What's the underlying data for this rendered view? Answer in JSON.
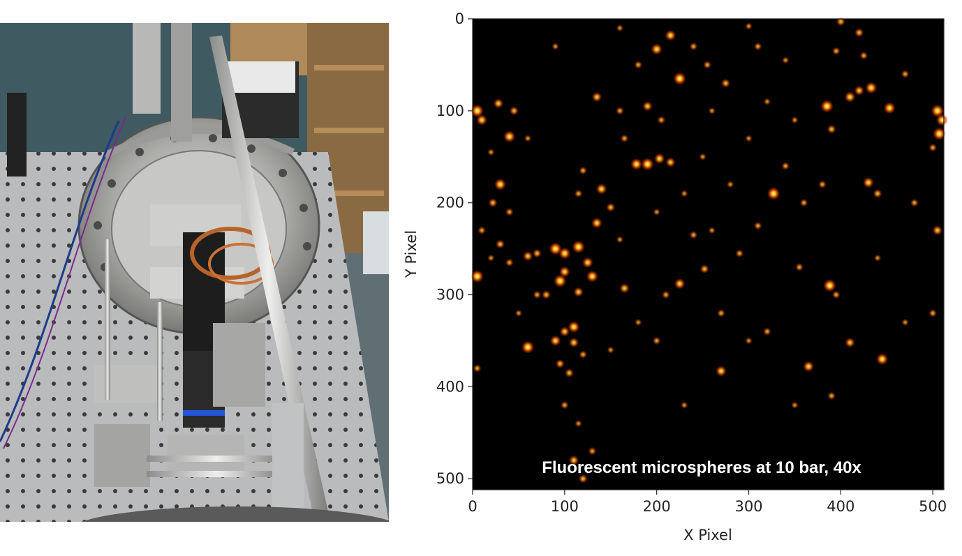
{
  "photo": {
    "icon": "optical-pressure-apparatus-photo"
  },
  "chart_data": {
    "type": "heatmap",
    "colormap": "afmhot",
    "xlabel": "X Pixel",
    "ylabel": "Y Pixel",
    "xlim": [
      0,
      511
    ],
    "ylim": [
      511,
      0
    ],
    "x_ticks": [
      "0",
      "100",
      "200",
      "300",
      "400",
      "500"
    ],
    "y_ticks": [
      "0",
      "100",
      "200",
      "300",
      "400",
      "500"
    ],
    "x_tick_values": [
      0,
      100,
      200,
      300,
      400,
      500
    ],
    "y_tick_values": [
      0,
      100,
      200,
      300,
      400,
      500
    ],
    "annotation": "Fluorescent microspheres at 10 bar, 40x",
    "grid": false,
    "colors": {
      "background": "#000000",
      "mid": "#c83200",
      "bright": "#ffb000",
      "peak": "#ffffe0"
    },
    "spots": [
      [
        5,
        100,
        1.0
      ],
      [
        10,
        110,
        0.8
      ],
      [
        28,
        92,
        0.7
      ],
      [
        40,
        128,
        0.9
      ],
      [
        45,
        100,
        0.6
      ],
      [
        200,
        33,
        0.85
      ],
      [
        215,
        18,
        0.8
      ],
      [
        225,
        65,
        1.0
      ],
      [
        240,
        30,
        0.5
      ],
      [
        255,
        50,
        0.5
      ],
      [
        135,
        85,
        0.7
      ],
      [
        160,
        100,
        0.5
      ],
      [
        190,
        95,
        0.7
      ],
      [
        165,
        130,
        0.5
      ],
      [
        205,
        110,
        0.5
      ],
      [
        190,
        158,
        1.0
      ],
      [
        178,
        158,
        0.9
      ],
      [
        203,
        152,
        0.8
      ],
      [
        215,
        156,
        0.7
      ],
      [
        140,
        185,
        0.8
      ],
      [
        135,
        222,
        0.8
      ],
      [
        120,
        165,
        0.5
      ],
      [
        115,
        190,
        0.5
      ],
      [
        150,
        205,
        0.6
      ],
      [
        30,
        180,
        0.9
      ],
      [
        22,
        200,
        0.6
      ],
      [
        40,
        210,
        0.5
      ],
      [
        10,
        230,
        0.5
      ],
      [
        30,
        245,
        0.6
      ],
      [
        60,
        258,
        0.7
      ],
      [
        70,
        255,
        0.6
      ],
      [
        90,
        250,
        1.0
      ],
      [
        100,
        255,
        0.9
      ],
      [
        115,
        248,
        1.0
      ],
      [
        125,
        265,
        0.8
      ],
      [
        130,
        280,
        0.9
      ],
      [
        95,
        285,
        1.0
      ],
      [
        100,
        275,
        0.8
      ],
      [
        115,
        297,
        0.7
      ],
      [
        80,
        300,
        0.6
      ],
      [
        5,
        280,
        1.0
      ],
      [
        40,
        265,
        0.5
      ],
      [
        165,
        293,
        0.7
      ],
      [
        225,
        288,
        0.8
      ],
      [
        210,
        300,
        0.5
      ],
      [
        252,
        272,
        0.6
      ],
      [
        270,
        320,
        0.5
      ],
      [
        290,
        255,
        0.5
      ],
      [
        240,
        235,
        0.5
      ],
      [
        260,
        230,
        0.4
      ],
      [
        310,
        225,
        0.5
      ],
      [
        327,
        190,
        1.0
      ],
      [
        340,
        160,
        0.5
      ],
      [
        360,
        200,
        0.5
      ],
      [
        385,
        95,
        1.0
      ],
      [
        390,
        120,
        0.6
      ],
      [
        410,
        85,
        0.8
      ],
      [
        420,
        78,
        0.7
      ],
      [
        433,
        75,
        0.9
      ],
      [
        453,
        97,
        0.9
      ],
      [
        505,
        100,
        1.0
      ],
      [
        507,
        125,
        1.0
      ],
      [
        510,
        110,
        0.9
      ],
      [
        500,
        140,
        0.5
      ],
      [
        395,
        35,
        0.5
      ],
      [
        420,
        15,
        0.6
      ],
      [
        425,
        40,
        0.5
      ],
      [
        400,
        3,
        0.6
      ],
      [
        430,
        178,
        0.8
      ],
      [
        440,
        190,
        0.6
      ],
      [
        380,
        180,
        0.5
      ],
      [
        388,
        290,
        1.0
      ],
      [
        395,
        300,
        0.5
      ],
      [
        355,
        270,
        0.5
      ],
      [
        410,
        352,
        0.7
      ],
      [
        445,
        370,
        0.9
      ],
      [
        365,
        378,
        0.8
      ],
      [
        390,
        410,
        0.5
      ],
      [
        270,
        383,
        0.8
      ],
      [
        320,
        340,
        0.5
      ],
      [
        300,
        350,
        0.4
      ],
      [
        230,
        420,
        0.4
      ],
      [
        60,
        357,
        1.0
      ],
      [
        90,
        350,
        0.8
      ],
      [
        100,
        340,
        0.7
      ],
      [
        110,
        335,
        0.9
      ],
      [
        110,
        352,
        0.7
      ],
      [
        105,
        385,
        0.6
      ],
      [
        95,
        375,
        0.6
      ],
      [
        120,
        365,
        0.5
      ],
      [
        100,
        420,
        0.5
      ],
      [
        115,
        440,
        0.4
      ],
      [
        110,
        480,
        0.7
      ],
      [
        120,
        500,
        0.6
      ],
      [
        130,
        470,
        0.5
      ],
      [
        310,
        30,
        0.5
      ],
      [
        340,
        45,
        0.4
      ],
      [
        300,
        8,
        0.4
      ],
      [
        275,
        70,
        0.6
      ],
      [
        180,
        50,
        0.5
      ],
      [
        160,
        10,
        0.4
      ],
      [
        90,
        30,
        0.4
      ],
      [
        60,
        130,
        0.4
      ],
      [
        20,
        145,
        0.4
      ],
      [
        470,
        60,
        0.5
      ],
      [
        480,
        200,
        0.5
      ],
      [
        505,
        230,
        0.7
      ],
      [
        500,
        320,
        0.5
      ],
      [
        470,
        330,
        0.4
      ],
      [
        440,
        260,
        0.4
      ],
      [
        350,
        420,
        0.4
      ],
      [
        200,
        350,
        0.5
      ],
      [
        180,
        330,
        0.4
      ],
      [
        150,
        360,
        0.4
      ],
      [
        250,
        150,
        0.4
      ],
      [
        280,
        180,
        0.4
      ],
      [
        230,
        190,
        0.4
      ],
      [
        320,
        90,
        0.4
      ],
      [
        350,
        110,
        0.4
      ],
      [
        300,
        130,
        0.4
      ],
      [
        70,
        300,
        0.5
      ],
      [
        50,
        320,
        0.4
      ],
      [
        20,
        260,
        0.4
      ],
      [
        5,
        380,
        0.5
      ],
      [
        160,
        240,
        0.4
      ],
      [
        200,
        210,
        0.4
      ],
      [
        260,
        100,
        0.4
      ]
    ]
  }
}
